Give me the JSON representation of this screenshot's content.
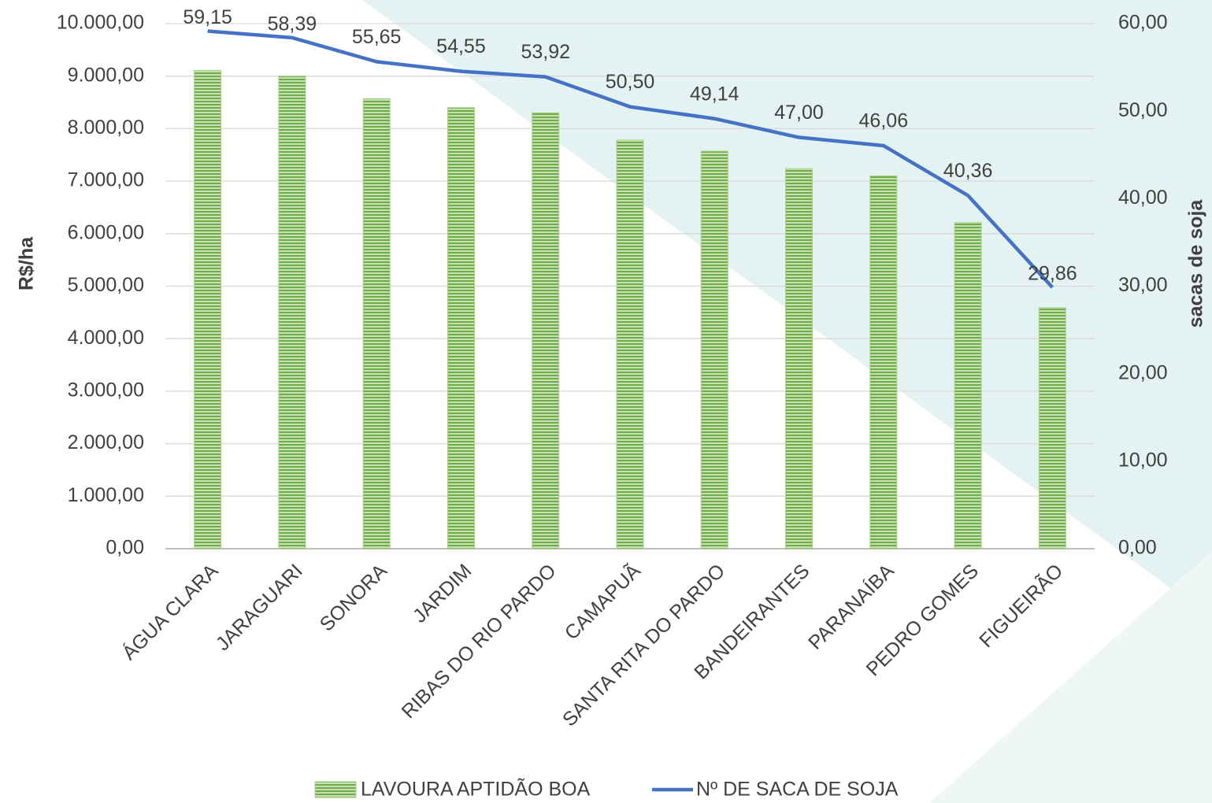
{
  "chart_data": {
    "type": "bar_line",
    "categories": [
      "ÁGUA CLARA",
      "JARAGUARI",
      "SONORA",
      "JARDIM",
      "RIBAS DO RIO PARDO",
      "CAMAPUÃ",
      "SANTA RITA DO PARDO",
      "BANDEIRANTES",
      "PARANAÍBA",
      "PEDRO GOMES",
      "FIGUEIRÃO"
    ],
    "series": [
      {
        "name": "LAVOURA APTIDÃO BOA",
        "type": "bar",
        "color": "#70ad47",
        "values": [
          9110,
          9000,
          8570,
          8400,
          8300,
          7780,
          7570,
          7240,
          7100,
          6210,
          4590
        ]
      },
      {
        "name": "Nº DE SACA DE SOJA",
        "type": "line",
        "axis": "y2",
        "color": "#4472c4",
        "values": [
          59.15,
          58.39,
          55.65,
          54.55,
          53.92,
          50.5,
          49.14,
          47.0,
          46.06,
          40.36,
          29.86
        ],
        "value_labels": [
          "59,15",
          "58,39",
          "55,65",
          "54,55",
          "53,92",
          "50,50",
          "49,14",
          "47,00",
          "46,06",
          "40,36",
          "29,86"
        ]
      }
    ],
    "ylabel": "R$/ha",
    "y2label": "sacas de soja",
    "ylim": [
      0,
      10000
    ],
    "yticks": [
      {
        "value": 0,
        "label": "0,00"
      },
      {
        "value": 1000,
        "label": "1.000,00"
      },
      {
        "value": 2000,
        "label": "2.000,00"
      },
      {
        "value": 3000,
        "label": "3.000,00"
      },
      {
        "value": 4000,
        "label": "4.000,00"
      },
      {
        "value": 5000,
        "label": "5.000,00"
      },
      {
        "value": 6000,
        "label": "6.000,00"
      },
      {
        "value": 7000,
        "label": "7.000,00"
      },
      {
        "value": 8000,
        "label": "8.000,00"
      },
      {
        "value": 9000,
        "label": "9.000,00"
      },
      {
        "value": 10000,
        "label": "10.000,00"
      }
    ],
    "y2lim": [
      0,
      60
    ],
    "y2ticks": [
      {
        "value": 0,
        "label": "0,00"
      },
      {
        "value": 10,
        "label": "10,00"
      },
      {
        "value": 20,
        "label": "20,00"
      },
      {
        "value": 30,
        "label": "30,00"
      },
      {
        "value": 40,
        "label": "40,00"
      },
      {
        "value": 50,
        "label": "50,00"
      },
      {
        "value": 60,
        "label": "60,00"
      }
    ],
    "grid": true,
    "legend": "bottom"
  }
}
